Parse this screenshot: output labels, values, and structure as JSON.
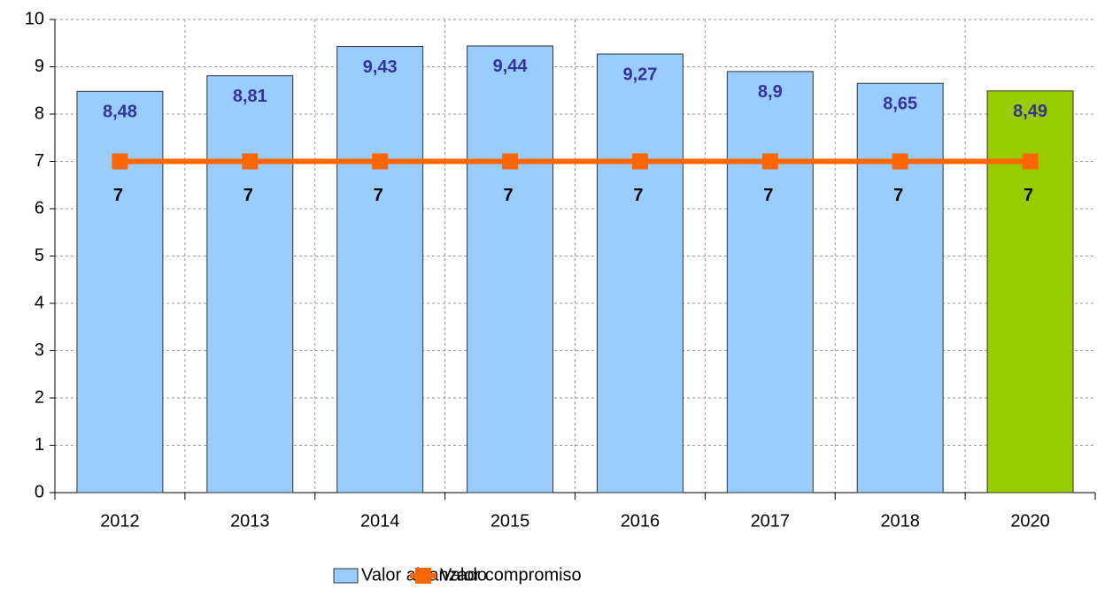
{
  "chart_data": {
    "type": "bar",
    "categories": [
      "2012",
      "2013",
      "2014",
      "2015",
      "2016",
      "2017",
      "2018",
      "2020"
    ],
    "series": [
      {
        "name": "Valor alcanzado",
        "type": "bar",
        "color": "#99ccff",
        "colors": [
          "#99ccff",
          "#99ccff",
          "#99ccff",
          "#99ccff",
          "#99ccff",
          "#99ccff",
          "#99ccff",
          "#99cc00"
        ],
        "values": [
          8.48,
          8.81,
          9.43,
          9.44,
          9.27,
          8.9,
          8.65,
          8.49
        ],
        "value_labels": [
          "8,48",
          "8,81",
          "9,43",
          "9,44",
          "9,27",
          "8,9",
          "8,65",
          "8,49"
        ]
      },
      {
        "name": "Valor compromiso",
        "type": "line",
        "color": "#ff6600",
        "values": [
          7,
          7,
          7,
          7,
          7,
          7,
          7,
          7
        ]
      }
    ],
    "ylim": [
      0,
      10
    ],
    "yticks": [
      0,
      1,
      2,
      3,
      4,
      5,
      6,
      7,
      8,
      9,
      10
    ],
    "grid": true,
    "legend": "bottom"
  }
}
